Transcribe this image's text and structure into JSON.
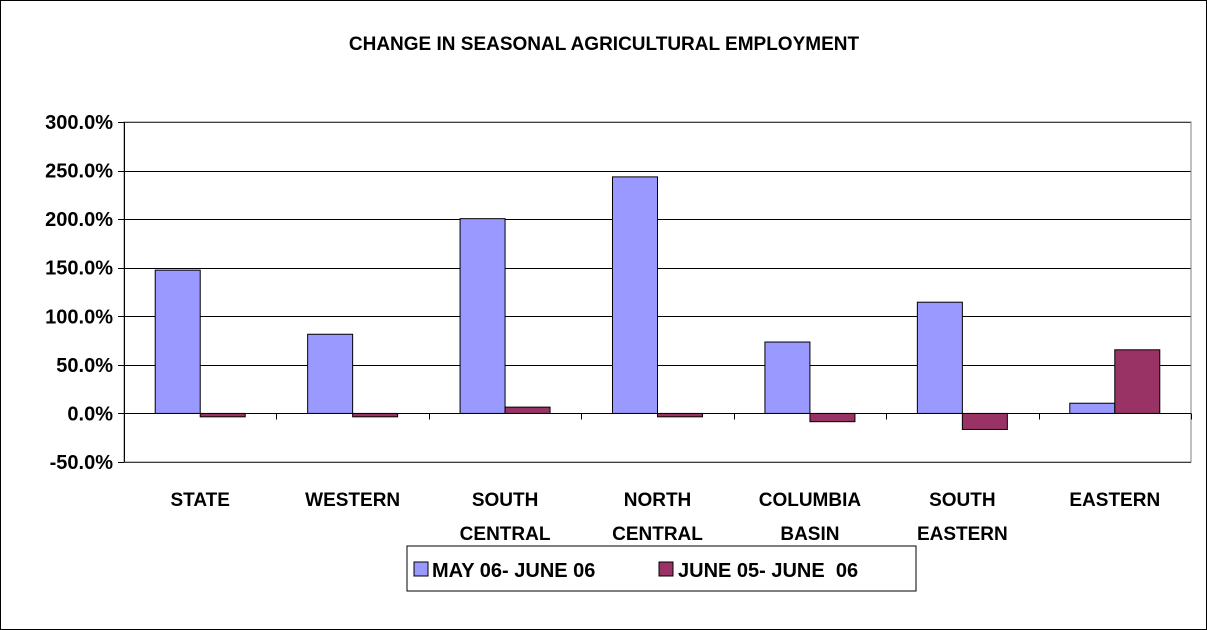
{
  "chart_data": {
    "type": "bar",
    "title": "CHANGE IN SEASONAL AGRICULTURAL EMPLOYMENT",
    "categories": [
      [
        "STATE"
      ],
      [
        "WESTERN"
      ],
      [
        "SOUTH",
        "CENTRAL"
      ],
      [
        "NORTH",
        "CENTRAL"
      ],
      [
        "COLUMBIA",
        "BASIN"
      ],
      [
        "SOUTH",
        "EASTERN"
      ],
      [
        "EASTERN"
      ]
    ],
    "series": [
      {
        "name": "MAY 06- JUNE 06",
        "color": "#9999ff",
        "values": [
          147.5,
          81.5,
          200.5,
          243.5,
          73.5,
          114.5,
          10.5
        ]
      },
      {
        "name": "JUNE 05- JUNE  06",
        "color": "#993366",
        "values": [
          -3.5,
          -3.5,
          6.5,
          -3.5,
          -8.5,
          -16.5,
          65.5
        ]
      }
    ],
    "ylim": [
      -50,
      300
    ],
    "yticks": [
      300,
      250,
      200,
      150,
      100,
      50,
      0,
      -50
    ],
    "ytick_labels": [
      "300.0%",
      "250.0%",
      "200.0%",
      "150.0%",
      "100.0%",
      "50.0%",
      "0.0%",
      "-50.0%"
    ],
    "grid": true,
    "legend_position": "bottom"
  }
}
